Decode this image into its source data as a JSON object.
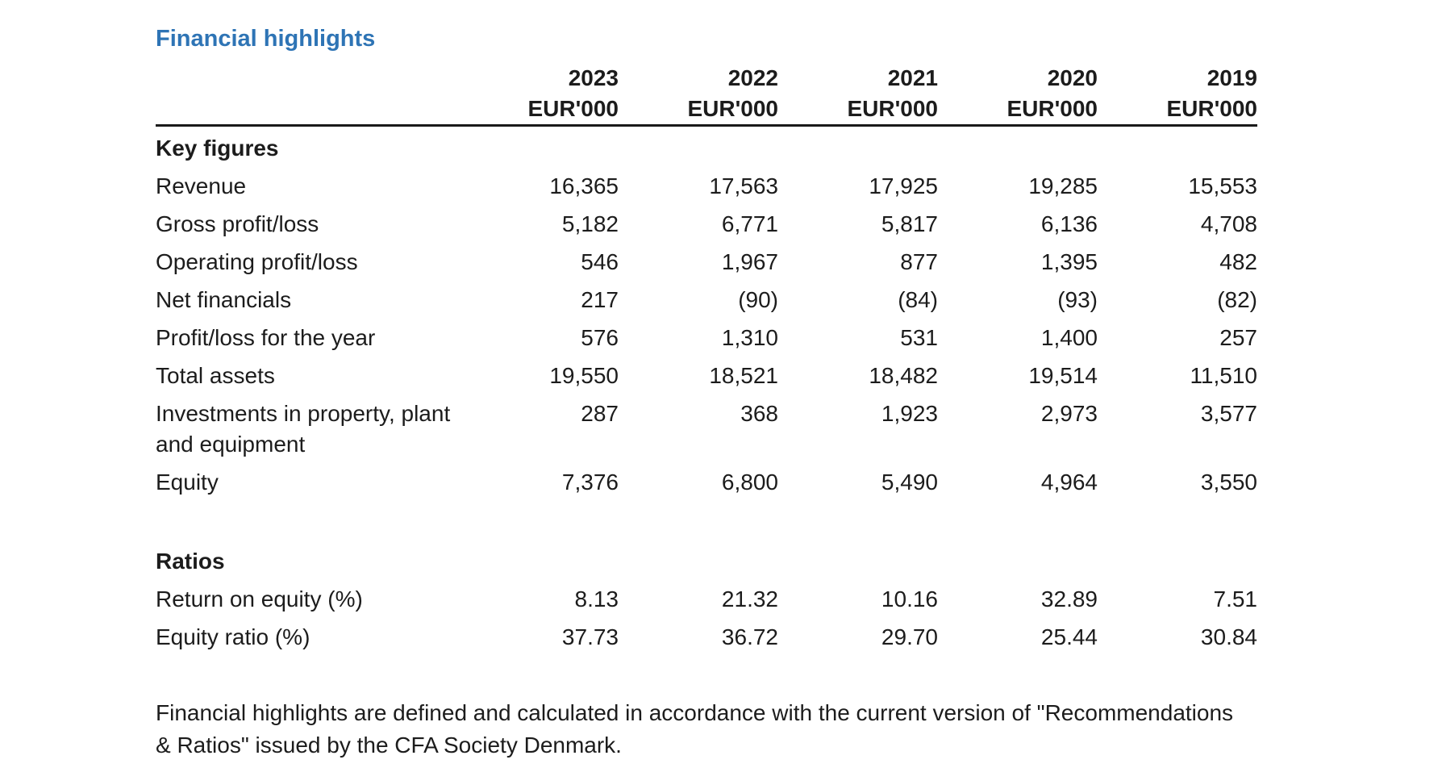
{
  "title": "Financial highlights",
  "accent_color": "#2E74B5",
  "table": {
    "years": [
      "2023",
      "2022",
      "2021",
      "2020",
      "2019"
    ],
    "unit": "EUR'000",
    "sections": [
      {
        "heading": "Key figures",
        "rows": [
          {
            "label": "Revenue",
            "values": [
              "16,365",
              "17,563",
              "17,925",
              "19,285",
              "15,553"
            ]
          },
          {
            "label": "Gross profit/loss",
            "values": [
              "5,182",
              "6,771",
              "5,817",
              "6,136",
              "4,708"
            ]
          },
          {
            "label": "Operating profit/loss",
            "values": [
              "546",
              "1,967",
              "877",
              "1,395",
              "482"
            ]
          },
          {
            "label": "Net financials",
            "values": [
              "217",
              "(90)",
              "(84)",
              "(93)",
              "(82)"
            ]
          },
          {
            "label": "Profit/loss for the year",
            "values": [
              "576",
              "1,310",
              "531",
              "1,400",
              "257"
            ]
          },
          {
            "label": "Total assets",
            "values": [
              "19,550",
              "18,521",
              "18,482",
              "19,514",
              "11,510"
            ]
          },
          {
            "label": "Investments in property, plant and equipment",
            "values": [
              "287",
              "368",
              "1,923",
              "2,973",
              "3,577"
            ]
          },
          {
            "label": "Equity",
            "values": [
              "7,376",
              "6,800",
              "5,490",
              "4,964",
              "3,550"
            ]
          }
        ]
      },
      {
        "heading": "Ratios",
        "rows": [
          {
            "label": "Return on equity (%)",
            "values": [
              "8.13",
              "21.32",
              "10.16",
              "32.89",
              "7.51"
            ]
          },
          {
            "label": "Equity ratio (%)",
            "values": [
              "37.73",
              "36.72",
              "29.70",
              "25.44",
              "30.84"
            ]
          }
        ]
      }
    ]
  },
  "footnote": "Financial highlights are defined and calculated in accordance with the current version of \"Recommendations & Ratios\" issued by the CFA Society Denmark."
}
